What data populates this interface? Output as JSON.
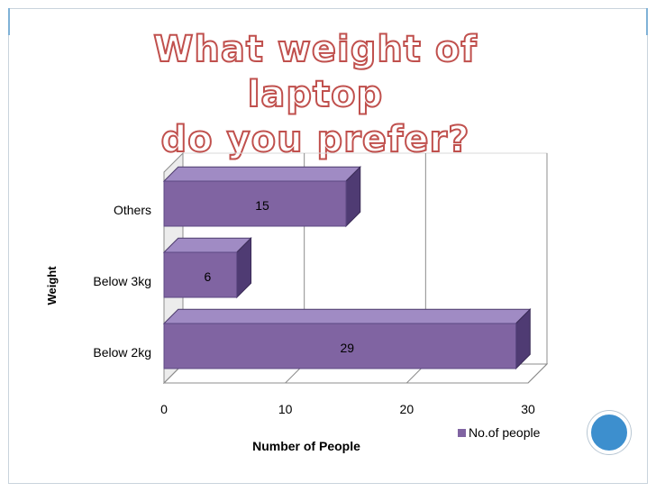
{
  "slide": {
    "title_line1": "What weight of laptop",
    "title_line2": "do you prefer?",
    "accent_color": "#3d8fce",
    "title_color": "#c0504d"
  },
  "chart_data": {
    "type": "bar",
    "orientation": "horizontal",
    "categories": [
      "Others",
      "Below 3kg",
      "Below 2kg"
    ],
    "series": [
      {
        "name": "No.of people",
        "values": [
          15,
          6,
          29
        ],
        "color": "#8064a2"
      }
    ],
    "data_labels": [
      "15",
      "6",
      "29"
    ],
    "xlabel": "Number of People",
    "ylabel": "Weight",
    "xlim": [
      0,
      30
    ],
    "x_ticks": [
      "0",
      "10",
      "20",
      "30"
    ],
    "grid": true,
    "legend_position": "bottom-right",
    "style": "3d"
  }
}
